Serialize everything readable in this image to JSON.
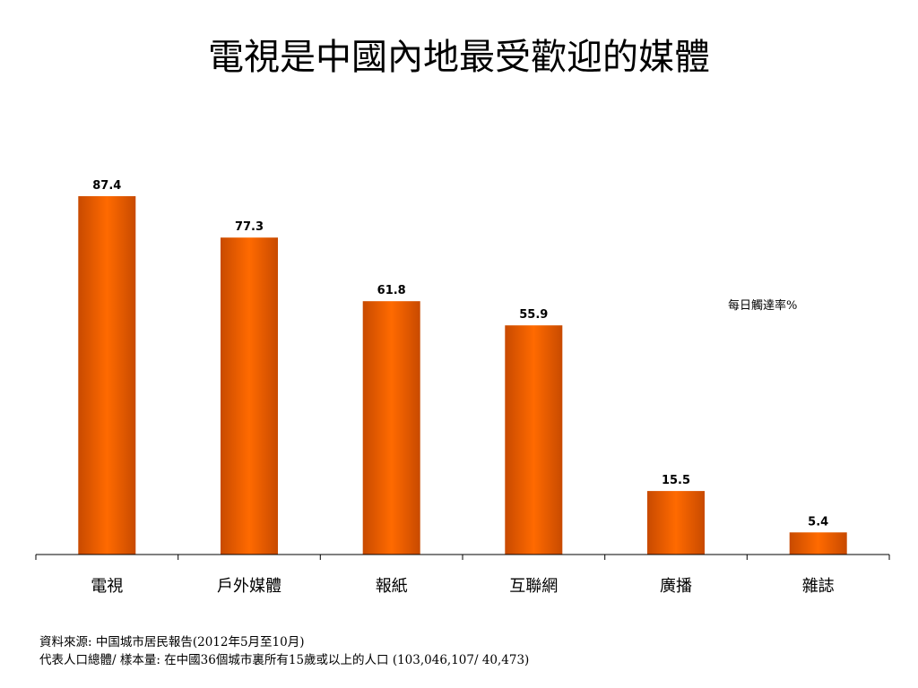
{
  "title": "電視是中國內地最受歡迎的媒體",
  "series_label": "每日觸達率%",
  "footnotes": [
    "資料來源: 中国城市居民報告(2012年5月至10月)",
    "代表人口總體/ 樣本量: 在中國36個城市裏所有15歲或以上的人口 (103,046,107/ 40,473)"
  ],
  "colors": {
    "bar_dark": "#c84a00",
    "bar_light": "#ff6a00",
    "axis": "#000000"
  },
  "chart_data": {
    "type": "bar",
    "categories": [
      "電視",
      "戶外媒體",
      "報紙",
      "互聯網",
      "廣播",
      "雜誌"
    ],
    "values": [
      87.4,
      77.3,
      61.8,
      55.9,
      15.5,
      5.4
    ],
    "data_labels": [
      "87.4",
      "77.3",
      "61.8",
      "55.9",
      "15.5",
      "5.4"
    ],
    "series": [
      {
        "name": "每日觸達率%",
        "values": [
          87.4,
          77.3,
          61.8,
          55.9,
          15.5,
          5.4
        ]
      }
    ],
    "title": "電視是中國內地最受歡迎的媒體",
    "xlabel": "",
    "ylabel": "",
    "ylim": [
      0,
      87.4
    ],
    "grid": false,
    "legend": "right"
  }
}
